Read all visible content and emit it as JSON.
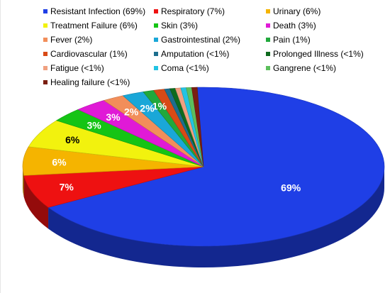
{
  "chart_data": {
    "type": "pie",
    "title": "",
    "legend_position": "top",
    "slices": [
      {
        "name": "Resistant Infection (69%)",
        "value": 69,
        "label": "69%",
        "color": "#1f3fe6",
        "label_color": "#ffffff"
      },
      {
        "name": "Respiratory (7%)",
        "value": 7,
        "label": "7%",
        "color": "#ee1111",
        "label_color": "#ffffff"
      },
      {
        "name": "Urinary (6%)",
        "value": 6,
        "label": "6%",
        "color": "#f5b400",
        "label_color": "#ffffff"
      },
      {
        "name": "Treatment Failure (6%)",
        "value": 6,
        "label": "6%",
        "color": "#f2f20e",
        "label_color": "#000000"
      },
      {
        "name": "Skin (3%)",
        "value": 3,
        "label": "3%",
        "color": "#15c415",
        "label_color": "#ffffff"
      },
      {
        "name": "Death (3%)",
        "value": 3,
        "label": "3%",
        "color": "#e01ad6",
        "label_color": "#ffffff"
      },
      {
        "name": "Fever (2%)",
        "value": 2,
        "label": "2%",
        "color": "#f28e5a",
        "label_color": "#ffffff"
      },
      {
        "name": "Gastrointestinal (2%)",
        "value": 2,
        "label": "2%",
        "color": "#1aa7d8",
        "label_color": "#ffffff"
      },
      {
        "name": "Pain (1%)",
        "value": 1,
        "label": "1%",
        "color": "#21a83c",
        "label_color": "#ffffff"
      },
      {
        "name": "Cardiovascular (1%)",
        "value": 1,
        "label": "",
        "color": "#d84a16",
        "label_color": "#ffffff"
      },
      {
        "name": "Amputation (<1%)",
        "value": 0.5,
        "label": "",
        "color": "#1d6e8e",
        "label_color": "#ffffff"
      },
      {
        "name": "Prolonged Illness (<1%)",
        "value": 0.5,
        "label": "",
        "color": "#0e6a1e",
        "label_color": "#ffffff"
      },
      {
        "name": "Fatigue (<1%)",
        "value": 0.5,
        "label": "",
        "color": "#f0a080",
        "label_color": "#ffffff"
      },
      {
        "name": "Coma (<1%)",
        "value": 0.5,
        "label": "",
        "color": "#22c3e3",
        "label_color": "#ffffff"
      },
      {
        "name": "Gangrene (<1%)",
        "value": 0.5,
        "label": "",
        "color": "#5cbf5c",
        "label_color": "#ffffff"
      },
      {
        "name": "Healing failure (<1%)",
        "value": 0.5,
        "label": "",
        "color": "#7a1e10",
        "label_color": "#ffffff"
      }
    ]
  }
}
